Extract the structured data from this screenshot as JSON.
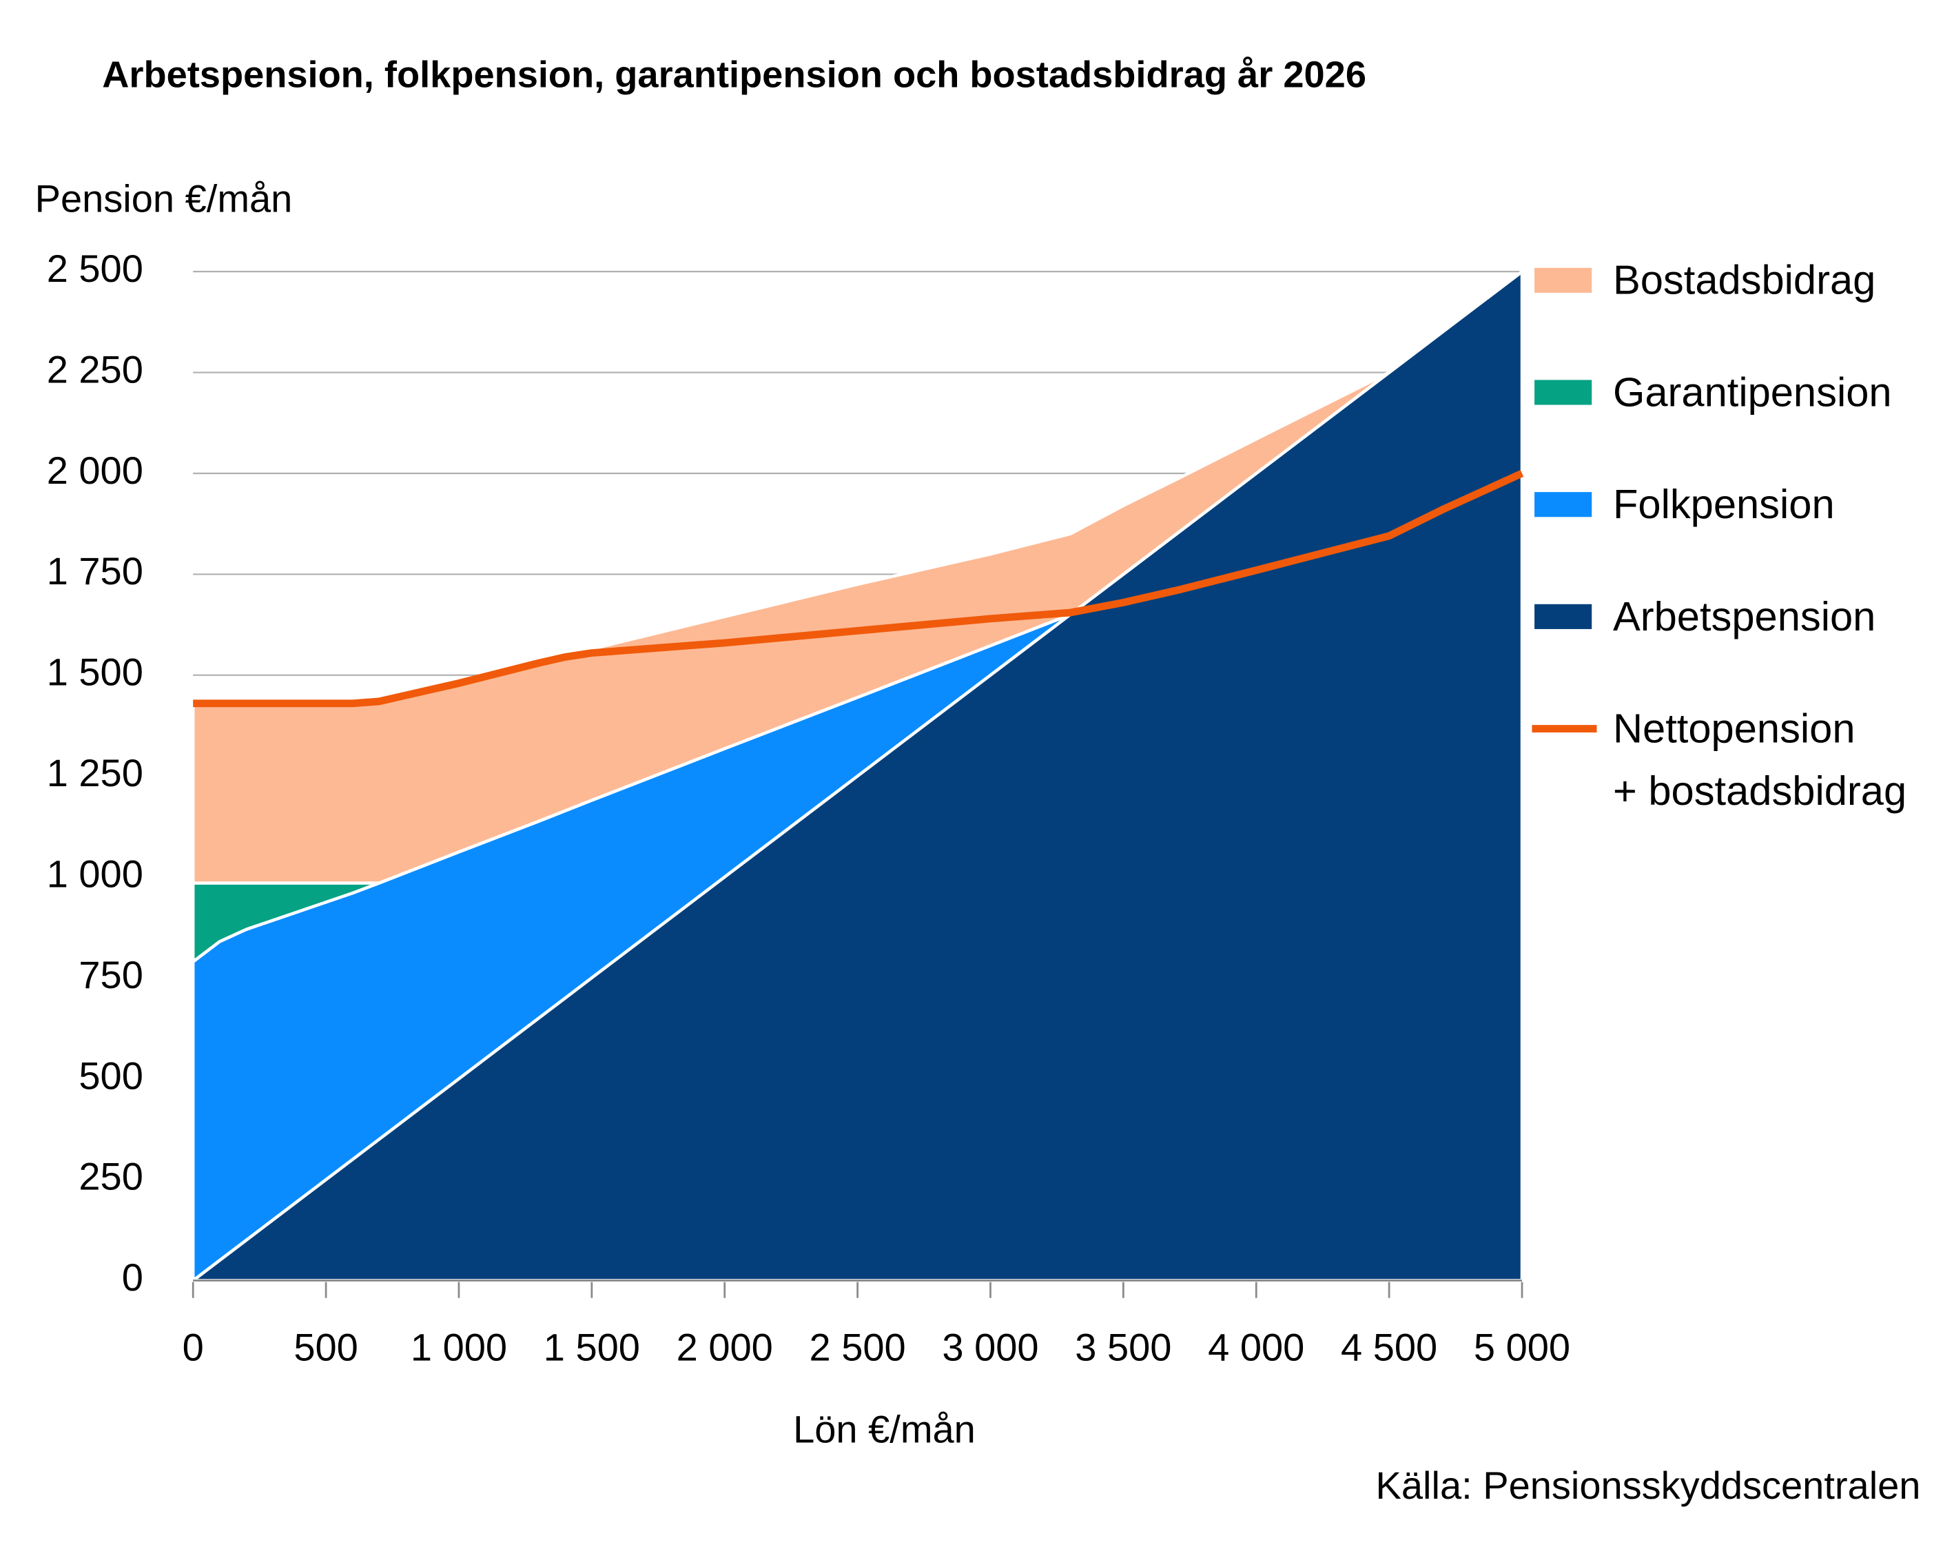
{
  "chart_data": {
    "type": "area",
    "title": "Arbetspension, folkpension, garantipension och bostadsbidrag år 2026",
    "ylabel": "Pension €/mån",
    "xlabel": "Lön €/mån",
    "source": "Källa: Pensionsskyddscentralen",
    "x": [
      0,
      100,
      200,
      600,
      700,
      1000,
      1300,
      1400,
      1500,
      2000,
      2500,
      3000,
      3300,
      3500,
      3700,
      4000,
      4500,
      4700,
      5000
    ],
    "series": [
      {
        "name": "Arbetspension",
        "color": "#053f7b",
        "values": [
          0,
          50,
          100,
          300,
          350,
          500,
          650,
          700,
          750,
          1000,
          1250,
          1500,
          1650,
          1750,
          1850,
          2000,
          2250,
          2350,
          2500
        ]
      },
      {
        "name": "Folkpension",
        "color": "#0a8cff",
        "values": [
          790,
          790,
          770,
          660,
          635,
          562,
          488,
          464,
          440,
          318,
          195,
          73,
          0,
          0,
          0,
          0,
          0,
          0,
          0
        ]
      },
      {
        "name": "Garantipension",
        "color": "#05a383",
        "values": [
          195,
          145,
          115,
          25,
          0,
          0,
          0,
          0,
          0,
          0,
          0,
          0,
          0,
          0,
          0,
          0,
          0,
          0,
          0
        ]
      },
      {
        "name": "Bostadsbidrag",
        "color": "#fdb994",
        "values": [
          445,
          445,
          445,
          445,
          450,
          418,
          392,
          381,
          375,
          327,
          280,
          227,
          200,
          170,
          135,
          85,
          0,
          0,
          0
        ]
      },
      {
        "name": "Nettopension\n+ bostadsbidrag",
        "color": "#f05a0a",
        "type": "line",
        "values": [
          1430,
          1430,
          1430,
          1430,
          1435,
          1480,
          1530,
          1545,
          1555,
          1580,
          1610,
          1640,
          1655,
          1680,
          1710,
          1760,
          1845,
          1910,
          2000
        ]
      }
    ],
    "xlim": [
      0,
      5000
    ],
    "xticks": [
      0,
      500,
      {
        "value": 1000,
        "label": "1 000"
      },
      {
        "value": 1500,
        "label": "1 500"
      },
      {
        "value": 2000,
        "label": "2 000"
      },
      {
        "value": 2500,
        "label": "2 500"
      },
      {
        "value": 3000,
        "label": "3 000"
      },
      {
        "value": 3500,
        "label": "3 500"
      },
      {
        "value": 4000,
        "label": "4 000"
      },
      {
        "value": 4500,
        "label": "4 500"
      },
      {
        "value": 5000,
        "label": "5 000"
      }
    ],
    "ylim": [
      0,
      2500
    ],
    "yticks": [
      0,
      250,
      500,
      750,
      {
        "value": 1000,
        "label": "1 000"
      },
      {
        "value": 1250,
        "label": "1 250"
      },
      {
        "value": 1500,
        "label": "1 500"
      },
      {
        "value": 1750,
        "label": "1 750"
      },
      {
        "value": 2000,
        "label": "2 000"
      },
      {
        "value": 2250,
        "label": "2 250"
      },
      {
        "value": 2500,
        "label": "2 500"
      }
    ],
    "grid": true,
    "legend": "right"
  }
}
